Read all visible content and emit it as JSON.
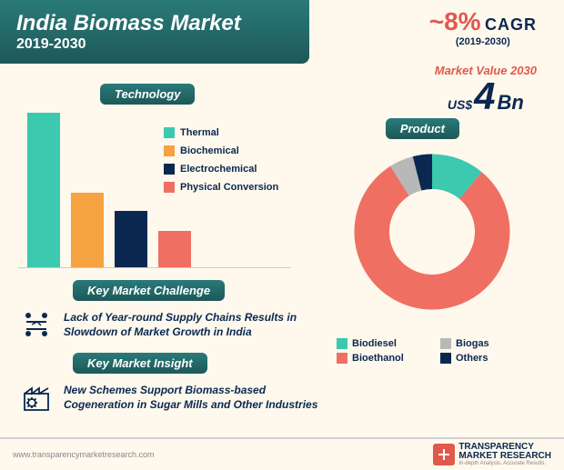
{
  "header": {
    "title": "India Biomass Market",
    "years": "2019-2030"
  },
  "cagr": {
    "value": "~8%",
    "label": "CAGR",
    "sub": "(2019-2030)"
  },
  "market_value": {
    "label": "Market Value 2030",
    "prefix": "US$",
    "num": "4",
    "unit": "Bn"
  },
  "tech": {
    "tag": "Technology",
    "type": "bar",
    "categories": [
      "Thermal",
      "Biochemical",
      "Electrochemical",
      "Physical Conversion"
    ],
    "values": [
      170,
      82,
      62,
      40
    ],
    "colors": [
      "#3bc9b0",
      "#f5a340",
      "#0a2850",
      "#ef6f63"
    ],
    "background": "#fef8ed"
  },
  "kmc": {
    "tag": "Key Market Challenge",
    "text": "Lack of Year-round Supply Chains Results in Slowdown of Market Growth in India"
  },
  "kmi": {
    "tag": "Key Market Insight",
    "text": "New Schemes Support Biomass-based Cogeneration in Sugar Mills and Other Industries"
  },
  "product": {
    "tag": "Product",
    "type": "donut",
    "labels": [
      "Biodiesel",
      "Bioethanol",
      "Biogas",
      "Others"
    ],
    "values": [
      11,
      80,
      5,
      4
    ],
    "colors": [
      "#3bc9b0",
      "#ef6f63",
      "#b8b8b8",
      "#0a2850"
    ],
    "hole": 0.55,
    "background": "#ffffff"
  },
  "footer": {
    "url": "www.transparencymarketresearch.com",
    "brand1": "TRANSPARENCY",
    "brand2": "MARKET RESEARCH",
    "tag": "In-depth Analysis. Accurate Results."
  },
  "colors": {
    "teal": "#2a7a7a",
    "navy": "#0a2850",
    "coral": "#e0594b",
    "bg": "#fef8ed"
  }
}
